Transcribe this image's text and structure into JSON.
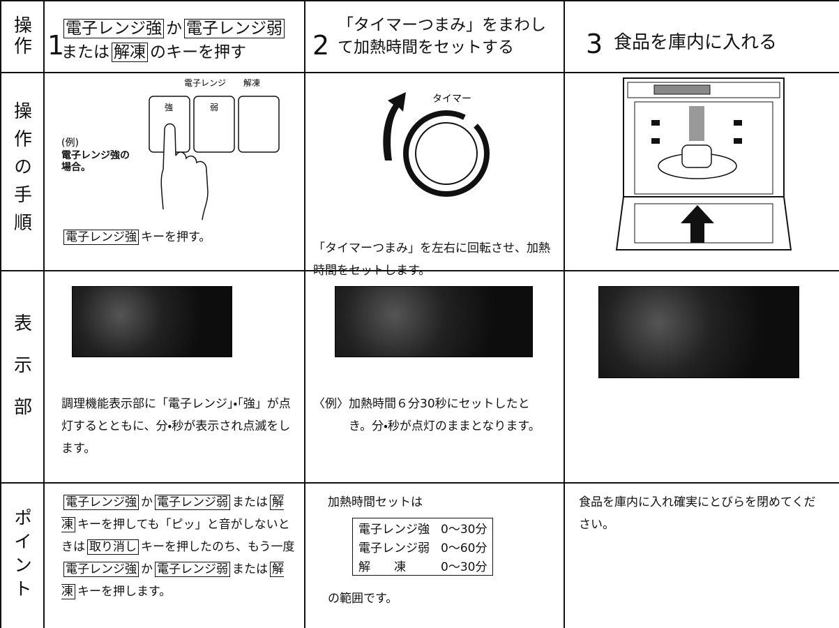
{
  "header": {
    "row_label": "操作",
    "steps": [
      {
        "number": "1",
        "segments": [
          {
            "key": "電子レンジ強"
          },
          {
            "text": "か"
          },
          {
            "key": "電子レンジ弱"
          },
          {
            "text": "または"
          },
          {
            "key": "解凍"
          },
          {
            "text": "のキーを押す"
          }
        ]
      },
      {
        "number": "2",
        "segments": [
          {
            "text": "「タイマーつまみ」をまわして加熱時間をセットする"
          }
        ]
      },
      {
        "number": "3",
        "segments": [
          {
            "text": "食品を庫内に入れる"
          }
        ]
      }
    ]
  },
  "procedure": {
    "row_label": "操作の手順",
    "step1": {
      "panel_labels": [
        "電子レンジ",
        "解凍"
      ],
      "key_labels": [
        "強",
        "弱"
      ],
      "example": "(例)",
      "example_note": "電子レンジ強の場合。",
      "segments": [
        {
          "key": "電子レンジ強"
        },
        {
          "text": "キーを押す。"
        }
      ]
    },
    "step2": {
      "dial_label": "タイマー",
      "segments": [
        {
          "text": "「タイマーつまみ」を左右に回転させ、加熱時間をセットします。"
        }
      ]
    }
  },
  "display": {
    "row_label": "表示部",
    "step1": {
      "segments": [
        {
          "text": "調理機能表示部に「電子レンジ」・「強」が点灯するとともに、分・秒が表示され点滅をします。"
        }
      ]
    },
    "step2": {
      "example": "〈例〉",
      "segments": [
        {
          "text": "加熱時間６分30秒にセットしたとき。分・秒が点灯のままとなります。"
        }
      ]
    }
  },
  "point": {
    "row_label": "ポイント",
    "step1": {
      "segments": [
        {
          "key": "電子レンジ強"
        },
        {
          "text": "か"
        },
        {
          "key": "電子レンジ弱"
        },
        {
          "text": "または"
        },
        {
          "key": "解凍"
        },
        {
          "text": "キーを押しても「ピッ」と音がしないときは"
        },
        {
          "key": "取り消し"
        },
        {
          "text": "キーを押したのち、もう一度"
        },
        {
          "key": "電子レンジ強"
        },
        {
          "text": "か"
        },
        {
          "key": "電子レンジ弱"
        },
        {
          "text": "または"
        },
        {
          "key": "解凍"
        },
        {
          "text": "キーを押します。"
        }
      ]
    },
    "step2": {
      "intro": "加熱時間セットは",
      "ranges": [
        [
          "電子レンジ強",
          "0～30分"
        ],
        [
          "電子レンジ弱",
          "0～60分"
        ],
        [
          "解　　凍",
          "0～30分"
        ]
      ],
      "outro": "の範囲です。"
    },
    "step3": {
      "segments": [
        {
          "text": "食品を庫内に入れ確実にとびらを閉めてください。"
        }
      ]
    }
  }
}
